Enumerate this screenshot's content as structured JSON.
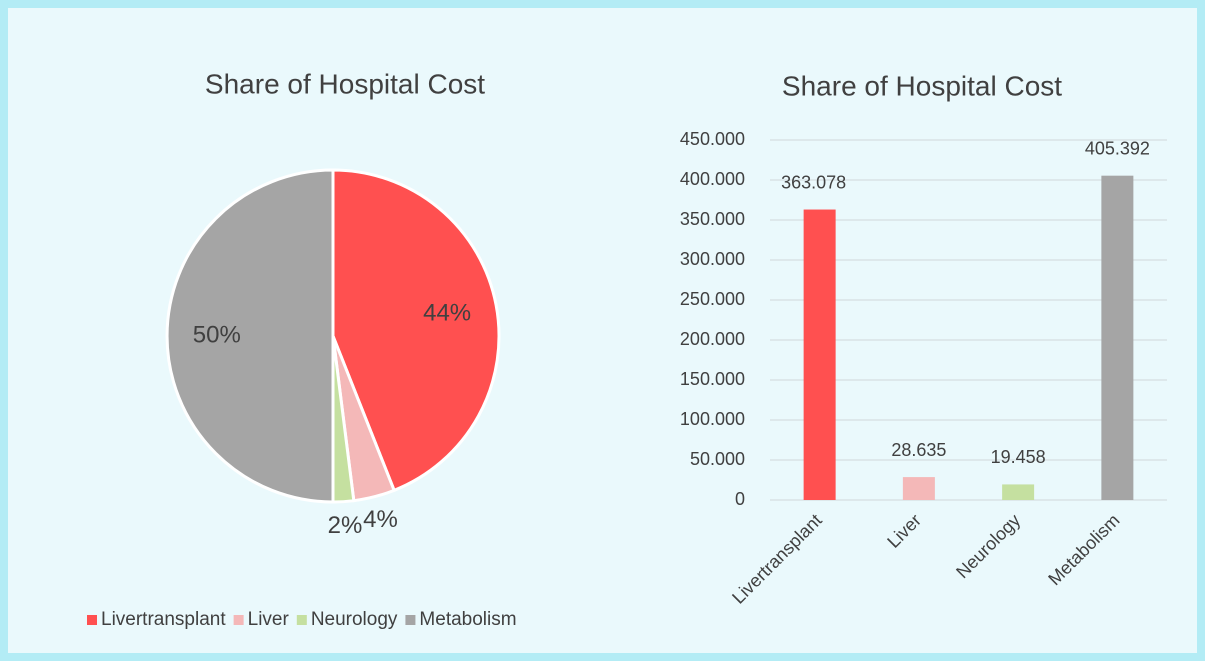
{
  "chart_data": [
    {
      "type": "pie",
      "title": "Share of Hospital Cost",
      "categories": [
        "Livertransplant",
        "Liver",
        "Neurology",
        "Metabolism"
      ],
      "values": [
        44,
        4,
        2,
        50
      ],
      "value_labels": [
        "44%",
        "4%",
        "2%",
        "50%"
      ],
      "colors": [
        "#ff5050",
        "#f4b8b8",
        "#c5e0a0",
        "#a5a5a5"
      ],
      "legend": "bottom"
    },
    {
      "type": "bar",
      "title": "Share of Hospital Cost",
      "categories": [
        "Livertransplant",
        "Liver",
        "Neurology",
        "Metabolism"
      ],
      "values": [
        363078,
        28635,
        19458,
        405392
      ],
      "value_labels": [
        "363.078",
        "28.635",
        "19.458",
        "405.392"
      ],
      "colors": [
        "#ff5050",
        "#f4b8b8",
        "#c5e0a0",
        "#a5a5a5"
      ],
      "ylim": [
        0,
        450000
      ],
      "yticks": [
        0,
        {
          "value": 50000,
          "label": "50.000"
        },
        {
          "value": 100000,
          "label": "100.000"
        },
        {
          "value": 150000,
          "label": "150.000"
        },
        {
          "value": 200000,
          "label": "200.000"
        },
        {
          "value": 250000,
          "label": "250.000"
        },
        {
          "value": 300000,
          "label": "300.000"
        },
        {
          "value": 350000,
          "label": "350.000"
        },
        {
          "value": 400000,
          "label": "400.000"
        },
        {
          "value": 450000,
          "label": "450.000"
        }
      ],
      "grid": true
    }
  ]
}
